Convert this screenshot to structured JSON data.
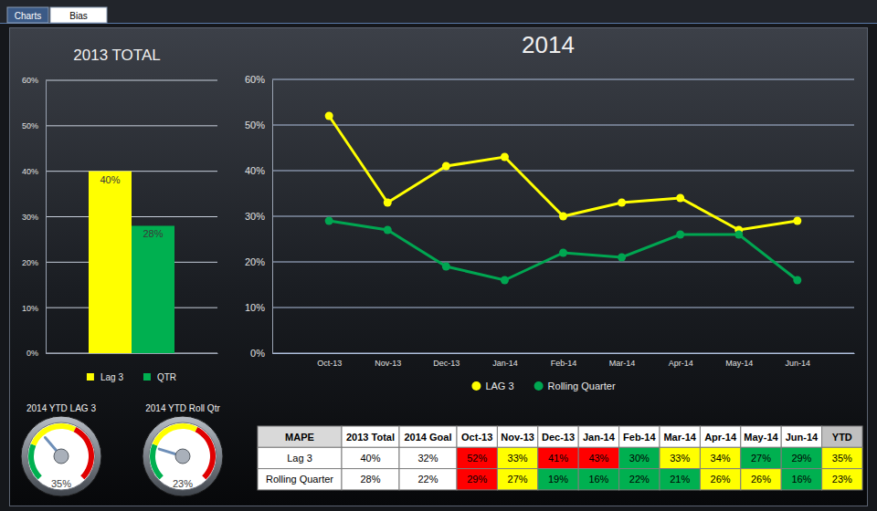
{
  "tabs": [
    "Charts",
    "Bias"
  ],
  "chart_data": [
    {
      "type": "bar",
      "title": "2013 TOTAL",
      "categories": [
        null
      ],
      "series": [
        {
          "name": "Lag 3",
          "color": "#ffff00",
          "values": [
            40
          ],
          "value_labels": [
            "40%"
          ]
        },
        {
          "name": "QTR",
          "color": "#00b050",
          "values": [
            28
          ],
          "value_labels": [
            "28%"
          ]
        }
      ],
      "ylim": [
        0,
        60
      ],
      "yticks": [
        {
          "value": 0,
          "label": "0%"
        },
        {
          "value": 10,
          "label": "10%"
        },
        {
          "value": 20,
          "label": "20%"
        },
        {
          "value": 30,
          "label": "30%"
        },
        {
          "value": 40,
          "label": "40%"
        },
        {
          "value": 50,
          "label": "50%"
        },
        {
          "value": 60,
          "label": "60%"
        }
      ],
      "grid": true,
      "data_labels": true,
      "legend": "bottom",
      "tick_labels": "y"
    },
    {
      "type": "line",
      "title": "2014",
      "categories": [
        "Oct-13",
        "Nov-13",
        "Dec-13",
        "Jan-14",
        "Feb-14",
        "Mar-14",
        "Apr-14",
        "May-14",
        "Jun-14"
      ],
      "series": [
        {
          "name": "LAG 3",
          "color": "#ffff00",
          "values": [
            52,
            33,
            41,
            43,
            30,
            33,
            34,
            27,
            29
          ]
        },
        {
          "name": "Rolling Quarter",
          "color": "#00a651",
          "values": [
            29,
            27,
            19,
            16,
            22,
            21,
            26,
            26,
            16
          ]
        }
      ],
      "ylim": [
        0,
        60
      ],
      "yticks": [
        {
          "value": 0,
          "label": "0%"
        },
        {
          "value": 10,
          "label": "10%"
        },
        {
          "value": 20,
          "label": "20%"
        },
        {
          "value": 30,
          "label": "30%"
        },
        {
          "value": 40,
          "label": "40%"
        },
        {
          "value": 50,
          "label": "50%"
        },
        {
          "value": 60,
          "label": "60%"
        }
      ],
      "grid": true,
      "marker": "circle",
      "legend": "bottom"
    },
    {
      "type": "gauge",
      "title": "2014 YTD LAG 3",
      "values": [
        35
      ],
      "value_labels": [
        "35%"
      ],
      "ylim": [
        0,
        100
      ],
      "bands": [
        {
          "from": 0,
          "to": 25,
          "color": "#00b050"
        },
        {
          "from": 25,
          "to": 60,
          "color": "#ffff00"
        },
        {
          "from": 60,
          "to": 100,
          "color": "#e00000"
        }
      ],
      "tick_labels": false
    },
    {
      "type": "gauge",
      "title": "2014 YTD Roll Qtr",
      "values": [
        23
      ],
      "value_labels": [
        "23%"
      ],
      "ylim": [
        0,
        100
      ],
      "bands": [
        {
          "from": 0,
          "to": 25,
          "color": "#00b050"
        },
        {
          "from": 25,
          "to": 60,
          "color": "#ffff00"
        },
        {
          "from": 60,
          "to": 100,
          "color": "#e00000"
        }
      ],
      "tick_labels": false
    }
  ],
  "table": {
    "header": [
      "MAPE",
      "2013 Total",
      "2014 Goal",
      "Oct-13",
      "Nov-13",
      "Dec-13",
      "Jan-14",
      "Feb-14",
      "Mar-14",
      "Apr-14",
      "May-14",
      "Jun-14",
      "YTD"
    ],
    "header_colors": [
      "#d9d9d9",
      "#ffffff",
      "#ffffff",
      "#ffffff",
      "#ffffff",
      "#ffffff",
      "#ffffff",
      "#ffffff",
      "#ffffff",
      "#ffffff",
      "#ffffff",
      "#ffffff",
      "#c0c0c0"
    ],
    "rows": [
      [
        "Lag 3",
        "40%",
        "32%",
        "52%",
        "33%",
        "41%",
        "43%",
        "30%",
        "33%",
        "34%",
        "27%",
        "29%",
        "35%"
      ],
      [
        "Rolling Quarter",
        "28%",
        "22%",
        "29%",
        "27%",
        "19%",
        "16%",
        "22%",
        "21%",
        "26%",
        "26%",
        "16%",
        "23%"
      ]
    ],
    "cell_colors": [
      [
        "#ffffff",
        "#ffffff",
        "#ffffff",
        "#ff0000",
        "#ffff00",
        "#ff0000",
        "#ff0000",
        "#00b050",
        "#ffff00",
        "#ffff00",
        "#00b050",
        "#00b050",
        "#ffff00"
      ],
      [
        "#ffffff",
        "#ffffff",
        "#ffffff",
        "#ff0000",
        "#ffff00",
        "#00b050",
        "#00b050",
        "#00b050",
        "#00b050",
        "#ffff00",
        "#ffff00",
        "#00b050",
        "#ffff00"
      ]
    ]
  }
}
